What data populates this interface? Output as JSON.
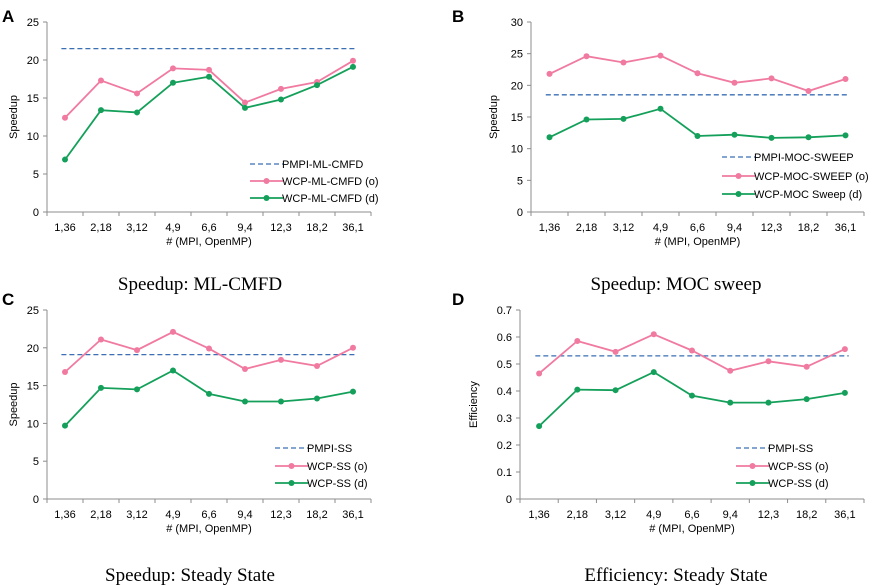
{
  "colors": {
    "pmpi": "#3a6fb4",
    "wcp_o": "#f07aa0",
    "wcp_d": "#14a05a",
    "axis": "#8c8c8c"
  },
  "chart_data": [
    {
      "panel": "A",
      "type": "line",
      "caption": "Speedup: ML-CMFD",
      "ylabel": "Speedup",
      "xlabel": "# (MPI, OpenMP)",
      "categories": [
        "1,36",
        "2,18",
        "3,12",
        "4,9",
        "6,6",
        "9,4",
        "12,3",
        "18,2",
        "36,1"
      ],
      "ylim": [
        0,
        25
      ],
      "yticks": [
        0,
        5,
        10,
        15,
        20,
        25
      ],
      "series": [
        {
          "name": "PMPI-ML-CMFD",
          "style": "dashed",
          "color_key": "pmpi",
          "values": [
            21.5,
            21.5,
            21.5,
            21.5,
            21.5,
            21.5,
            21.5,
            21.5,
            21.5
          ]
        },
        {
          "name": "WCP-ML-CMFD (o)",
          "style": "marker",
          "color_key": "wcp_o",
          "values": [
            12.4,
            17.3,
            15.6,
            18.9,
            18.7,
            14.4,
            16.2,
            17.1,
            19.9
          ]
        },
        {
          "name": "WCP-ML-CMFD (d)",
          "style": "marker",
          "color_key": "wcp_d",
          "values": [
            6.9,
            13.4,
            13.1,
            17.0,
            17.8,
            13.7,
            14.8,
            16.7,
            19.1
          ]
        }
      ]
    },
    {
      "panel": "B",
      "type": "line",
      "caption": "Speedup: MOC sweep",
      "ylabel": "Speedup",
      "xlabel": "# (MPI, OpenMP)",
      "categories": [
        "1,36",
        "2,18",
        "3,12",
        "4,9",
        "6,6",
        "9,4",
        "12,3",
        "18,2",
        "36,1"
      ],
      "ylim": [
        0,
        30
      ],
      "yticks": [
        0,
        5,
        10,
        15,
        20,
        25,
        30
      ],
      "series": [
        {
          "name": "PMPI-MOC-SWEEP",
          "style": "dashed",
          "color_key": "pmpi",
          "values": [
            18.5,
            18.5,
            18.5,
            18.5,
            18.5,
            18.5,
            18.5,
            18.5,
            18.5
          ]
        },
        {
          "name": "WCP-MOC-SWEEP (o)",
          "style": "marker",
          "color_key": "wcp_o",
          "values": [
            21.8,
            24.6,
            23.6,
            24.7,
            21.9,
            20.4,
            21.1,
            19.1,
            21.0
          ]
        },
        {
          "name": "WCP-MOC Sweep (d)",
          "style": "marker",
          "color_key": "wcp_d",
          "values": [
            11.8,
            14.6,
            14.7,
            16.3,
            12.0,
            12.2,
            11.7,
            11.8,
            12.1
          ]
        }
      ]
    },
    {
      "panel": "C",
      "type": "line",
      "caption": "Speedup: Steady State",
      "ylabel": "Speedup",
      "xlabel": "# (MPI, OpenMP)",
      "categories": [
        "1,36",
        "2,18",
        "3,12",
        "4,9",
        "6,6",
        "9,4",
        "12,3",
        "18,2",
        "36,1"
      ],
      "ylim": [
        0,
        25
      ],
      "yticks": [
        0,
        5,
        10,
        15,
        20,
        25
      ],
      "series": [
        {
          "name": "PMPI-SS",
          "style": "dashed",
          "color_key": "pmpi",
          "values": [
            19.1,
            19.1,
            19.1,
            19.1,
            19.1,
            19.1,
            19.1,
            19.1,
            19.1
          ]
        },
        {
          "name": "WCP-SS (o)",
          "style": "marker",
          "color_key": "wcp_o",
          "values": [
            16.8,
            21.1,
            19.7,
            22.1,
            19.9,
            17.2,
            18.4,
            17.6,
            20.0
          ]
        },
        {
          "name": "WCP-SS (d)",
          "style": "marker",
          "color_key": "wcp_d",
          "values": [
            9.7,
            14.7,
            14.5,
            17.0,
            13.9,
            12.9,
            12.9,
            13.3,
            14.2
          ]
        }
      ]
    },
    {
      "panel": "D",
      "type": "line",
      "caption": "Efficiency: Steady State",
      "ylabel": "Efficiency",
      "xlabel": "# (MPI, OpenMP)",
      "categories": [
        "1,36",
        "2,18",
        "3,12",
        "4,9",
        "6,6",
        "9,4",
        "12,3",
        "18,2",
        "36,1"
      ],
      "ylim": [
        0,
        0.7
      ],
      "yticks": [
        0,
        0.1,
        0.2,
        0.3,
        0.4,
        0.5,
        0.6,
        0.7
      ],
      "series": [
        {
          "name": "PMPI-SS",
          "style": "dashed",
          "color_key": "pmpi",
          "values": [
            0.53,
            0.53,
            0.53,
            0.53,
            0.53,
            0.53,
            0.53,
            0.53,
            0.53
          ]
        },
        {
          "name": "WCP-SS (o)",
          "style": "marker",
          "color_key": "wcp_o",
          "values": [
            0.465,
            0.585,
            0.545,
            0.61,
            0.55,
            0.475,
            0.51,
            0.49,
            0.555
          ]
        },
        {
          "name": "WCP-SS (d)",
          "style": "marker",
          "color_key": "wcp_d",
          "values": [
            0.27,
            0.405,
            0.403,
            0.47,
            0.383,
            0.357,
            0.357,
            0.37,
            0.393
          ]
        }
      ]
    }
  ]
}
